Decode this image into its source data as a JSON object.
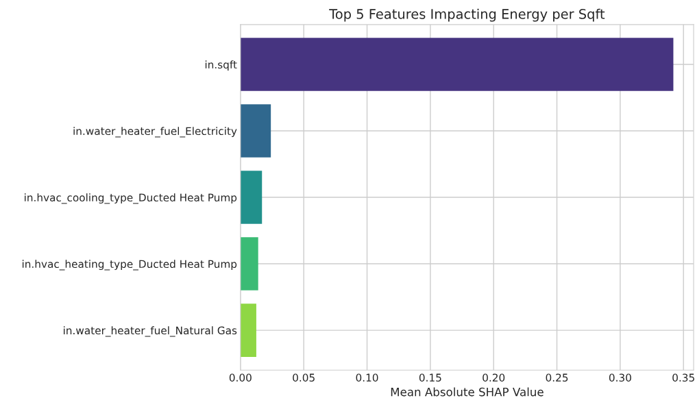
{
  "chart_data": {
    "type": "bar",
    "orientation": "horizontal",
    "title": "Top 5 Features Impacting Energy per Sqft",
    "xlabel": "Mean Absolute SHAP Value",
    "categories": [
      "in.sqft",
      "in.water_heater_fuel_Electricity",
      "in.hvac_cooling_type_Ducted Heat Pump",
      "in.hvac_heating_type_Ducted Heat Pump",
      "in.water_heater_fuel_Natural Gas"
    ],
    "values": [
      0.342,
      0.024,
      0.017,
      0.014,
      0.0125
    ],
    "colors": [
      "#463480",
      "#30688e",
      "#21918c",
      "#3bbb75",
      "#8fd744"
    ],
    "xlim": [
      0,
      0.358
    ],
    "xticks": [
      {
        "value": 0,
        "label": "0.00"
      },
      {
        "value": 0.05,
        "label": "0.05"
      },
      {
        "value": 0.1,
        "label": "0.10"
      },
      {
        "value": 0.15,
        "label": "0.15"
      },
      {
        "value": 0.2,
        "label": "0.20"
      },
      {
        "value": 0.25,
        "label": "0.25"
      },
      {
        "value": 0.3,
        "label": "0.30"
      },
      {
        "value": 0.35,
        "label": "0.35"
      }
    ],
    "grid": true
  }
}
